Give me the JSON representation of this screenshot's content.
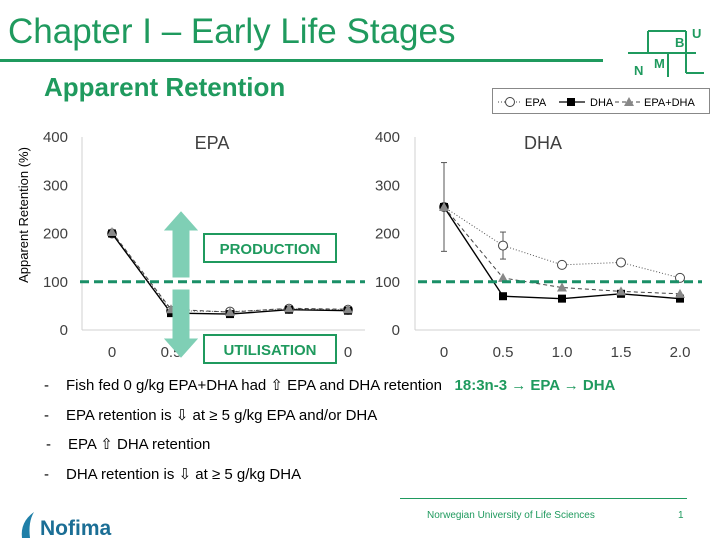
{
  "header": {
    "title": "Chapter I – Early Life Stages",
    "subtitle": "Apparent Retention",
    "logo_letters": [
      "N",
      "M",
      "B",
      "U"
    ]
  },
  "legend": {
    "entries": [
      {
        "label": "EPA",
        "marker": "open-circle",
        "line": "dotted"
      },
      {
        "label": "DHA",
        "marker": "filled-square",
        "line": "solid"
      },
      {
        "label": "EPA+DHA",
        "marker": "filled-triangle",
        "line": "dashed"
      }
    ]
  },
  "annotations": {
    "production_label": "PRODUCTION",
    "utilisation_label": "UTILISATION",
    "reference_line_value": 100,
    "colors": {
      "brand_green": "#1f9a5e",
      "arrow_teal": "#7fcfb5",
      "reference_line": "#1a8f67"
    }
  },
  "chart_data": [
    {
      "type": "line",
      "title": "EPA",
      "ylabel": "Apparent Retention (%)",
      "xlabel": "",
      "x": [
        0,
        0.5,
        1.0,
        1.5,
        2.0
      ],
      "x_tick_labels": [
        "0",
        "0.5",
        "",
        "",
        "0"
      ],
      "ylim": [
        0,
        400
      ],
      "y_ticks": [
        0,
        100,
        200,
        300,
        400
      ],
      "grid": false,
      "series": [
        {
          "name": "EPA",
          "values": [
            200,
            40,
            38,
            44,
            42
          ]
        },
        {
          "name": "DHA",
          "values": [
            200,
            35,
            33,
            42,
            40
          ]
        },
        {
          "name": "EPA+DHA",
          "values": [
            203,
            43,
            37,
            45,
            43
          ]
        }
      ]
    },
    {
      "type": "line",
      "title": "DHA",
      "ylabel": "",
      "xlabel": "",
      "x": [
        0,
        0.5,
        1.0,
        1.5,
        2.0
      ],
      "x_tick_labels": [
        "0",
        "0.5",
        "1.0",
        "1.5",
        "2.0"
      ],
      "ylim": [
        0,
        400
      ],
      "y_ticks": [
        0,
        100,
        200,
        300,
        400
      ],
      "grid": false,
      "series": [
        {
          "name": "EPA",
          "values": [
            255,
            175,
            135,
            140,
            108
          ],
          "error": [
            92,
            28,
            0,
            0,
            0
          ]
        },
        {
          "name": "DHA",
          "values": [
            255,
            70,
            65,
            75,
            65
          ]
        },
        {
          "name": "EPA+DHA",
          "values": [
            255,
            108,
            88,
            80,
            75
          ]
        }
      ]
    }
  ],
  "bullets": [
    {
      "dash": "-",
      "before": "Fish fed 0 g/kg EPA+DHA had ",
      "arrow": "⇧",
      "after": " EPA and DHA retention",
      "highlight": "18:3n-3 → EPA → DHA"
    },
    {
      "dash": "-",
      "before": "EPA retention is ",
      "arrow": "⇩",
      "after": " at ≥ 5 g/kg EPA and/or DHA",
      "highlight": ""
    },
    {
      "dash": "-",
      "before": "EPA ",
      "arrow": "⇧",
      "after": " DHA retention",
      "highlight": ""
    },
    {
      "dash": "-",
      "before": "DHA retention is ",
      "arrow": "⇩",
      "after": " at ≥ 5 g/kg DHA",
      "highlight": ""
    }
  ],
  "footer": {
    "university": "Norwegian University of Life Sciences",
    "page": "1",
    "brand": "Nofima"
  }
}
